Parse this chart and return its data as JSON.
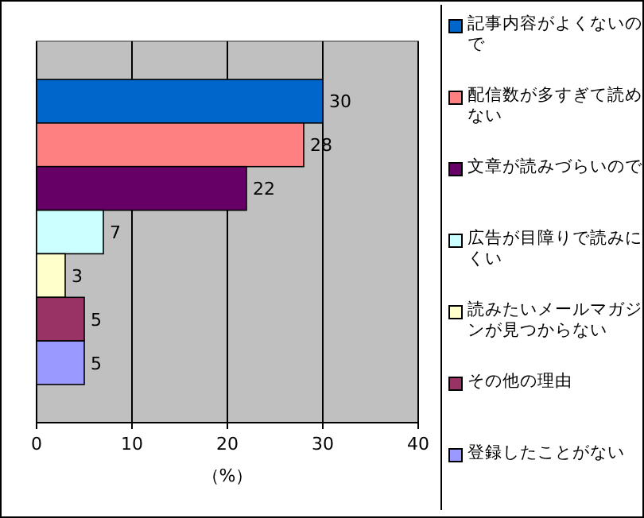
{
  "chart_data": {
    "type": "bar",
    "orientation": "horizontal",
    "categories": [
      null
    ],
    "series": [
      {
        "name": "記事内容がよくないので",
        "color": "#0066cc",
        "values": [
          30
        ]
      },
      {
        "name": "配信数が多すぎて読めない",
        "color": "#ff8080",
        "values": [
          28
        ]
      },
      {
        "name": "文章が読みづらいので",
        "color": "#660066",
        "values": [
          22
        ]
      },
      {
        "name": "広告が目障りで読みにくい",
        "color": "#ccffff",
        "values": [
          7
        ]
      },
      {
        "name": "読みたいメールマガジンが見つからない",
        "color": "#ffffcc",
        "values": [
          3
        ]
      },
      {
        "name": "その他の理由",
        "color": "#993366",
        "values": [
          5
        ]
      },
      {
        "name": "登録したことがない",
        "color": "#9999ff",
        "values": [
          5
        ]
      }
    ],
    "xlim": [
      0,
      40
    ],
    "xticks": [
      0,
      10,
      20,
      30,
      40
    ],
    "xlabel": "（%）",
    "grid": "x",
    "data_labels": true,
    "legend": "right"
  }
}
